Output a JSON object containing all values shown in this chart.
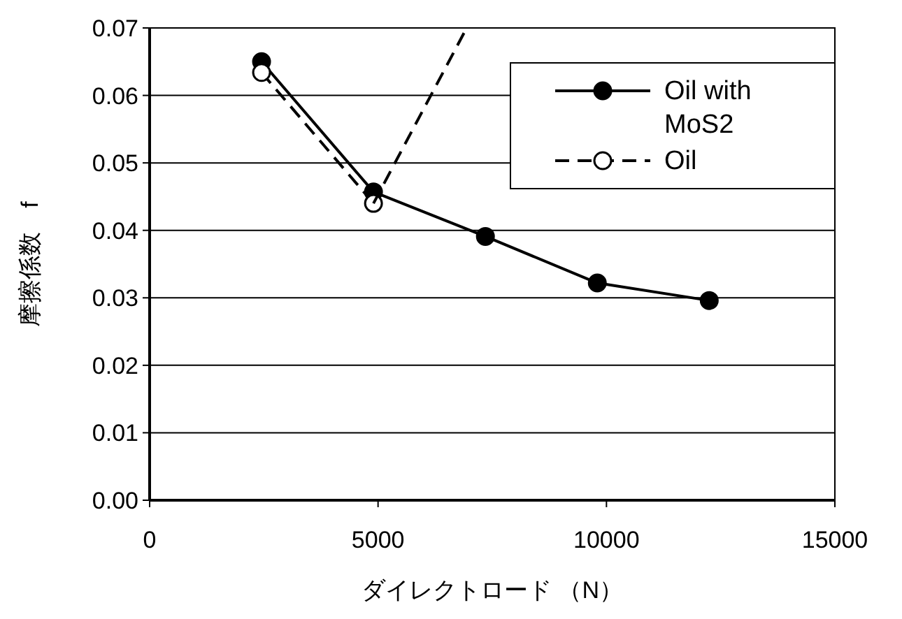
{
  "chart_data": {
    "type": "line",
    "xlabel": "ダイレクトロード （N）",
    "ylabel": "摩擦係数　f",
    "xlim": [
      0,
      15000
    ],
    "xticks": [
      0,
      5000,
      10000,
      15000
    ],
    "ylim": [
      0,
      0.07
    ],
    "yticks": [
      {
        "value": 0,
        "label": "0.00"
      },
      {
        "value": 0.01,
        "label": "0.01"
      },
      {
        "value": 0.02,
        "label": "0.02"
      },
      {
        "value": 0.03,
        "label": "0.03"
      },
      {
        "value": 0.04,
        "label": "0.04"
      },
      {
        "value": 0.05,
        "label": "0.05"
      },
      {
        "value": 0.06,
        "label": "0.06"
      },
      {
        "value": 0.07,
        "label": "0.07"
      }
    ],
    "grid": "y",
    "legend": "top right",
    "series": [
      {
        "name": "Oil with MoS2",
        "color": "#000000",
        "marker": "circle",
        "line_style": "solid",
        "x": [
          2450,
          4900,
          7350,
          9800,
          12250
        ],
        "values": [
          0.065,
          0.0457,
          0.0391,
          0.0322,
          0.0296
        ]
      },
      {
        "name": "Oil",
        "color": "#000000",
        "marker": "circle_open",
        "line_style": "dashed",
        "x": [
          2450,
          4900
        ],
        "values": [
          0.0634,
          0.044
        ]
      },
      {
        "color": "#000000",
        "marker": "none",
        "line_style": "dashed",
        "x": [
          4900,
          6940
        ],
        "values": [
          0.044,
          0.07
        ]
      }
    ]
  }
}
